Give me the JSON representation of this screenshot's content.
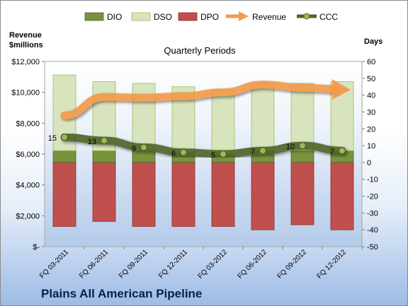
{
  "chart_data": {
    "type": "bar",
    "title": "Plains All American Pipeline",
    "subtitle": "Quarterly Periods",
    "left_axis_title": [
      "Revenue",
      "$millions"
    ],
    "right_axis_title": "Days",
    "left_ylim": [
      0,
      12000
    ],
    "left_ticks": [
      0,
      2000,
      4000,
      6000,
      8000,
      10000,
      12000
    ],
    "left_tick_labels": [
      "$-",
      "$2,000",
      "$4,000",
      "$6,000",
      "$8,000",
      "$10,000",
      "$12,000"
    ],
    "right_ylim": [
      -50,
      60
    ],
    "right_ticks": [
      -50,
      -40,
      -30,
      -20,
      -10,
      0,
      10,
      20,
      30,
      40,
      50,
      60
    ],
    "categories": [
      "FQ 03-2011",
      "FQ 06-2011",
      "FQ 09-2011",
      "FQ 12-2011",
      "FQ 03-2012",
      "FQ 06-2012",
      "FQ 09-2012",
      "FQ 12-2012"
    ],
    "legend": [
      "DIO",
      "DSO",
      "DPO",
      "Revenue",
      "CCC"
    ],
    "series": [
      {
        "name": "DIO",
        "axis": "days",
        "stack": "positive",
        "color": "#77933c",
        "values": [
          7,
          7,
          7,
          6,
          5,
          7,
          7,
          7
        ]
      },
      {
        "name": "DSO",
        "axis": "days",
        "stack": "positive",
        "color": "#d7e4bd",
        "values": [
          45,
          41,
          40,
          39,
          38,
          40,
          40,
          41
        ]
      },
      {
        "name": "DPO",
        "axis": "days",
        "stack": "negative",
        "color": "#c0504d",
        "values": [
          38,
          35,
          38,
          38,
          38,
          40,
          37,
          40
        ]
      },
      {
        "name": "Revenue",
        "axis": "revenue",
        "color": "#f39a4c",
        "values": [
          8500,
          9700,
          9650,
          9750,
          10000,
          10500,
          10300,
          10200
        ]
      },
      {
        "name": "CCC",
        "axis": "days",
        "color": "#4f6228",
        "values": [
          15,
          13,
          9,
          6,
          5,
          7,
          10,
          7
        ]
      }
    ],
    "ccc_labels": [
      "15",
      "13",
      "9",
      "6",
      "5",
      "7",
      "10",
      "7"
    ],
    "grid": false,
    "legend_position": "top"
  }
}
